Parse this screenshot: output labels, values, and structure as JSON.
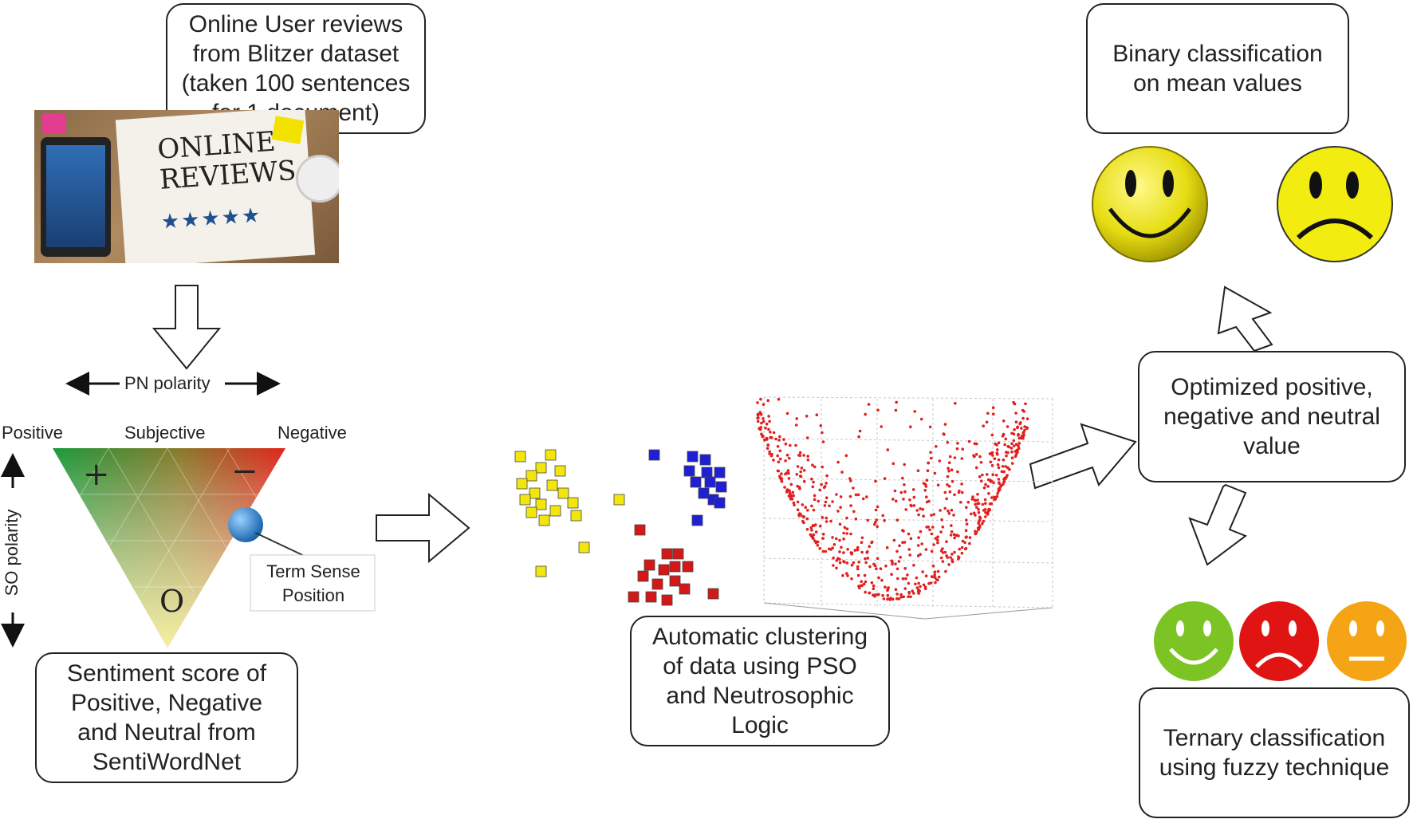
{
  "boxes": {
    "source": [
      "Online User reviews",
      "from Blitzer dataset",
      "(taken 100 sentences",
      "for 1 document)"
    ],
    "sentiment": [
      "Sentiment score of",
      "Positive, Negative",
      "and Neutral from",
      "SentiWordNet"
    ],
    "clustering": [
      "Automatic clustering",
      "of data using PSO",
      "and Neutrosophic",
      "Logic"
    ],
    "optimized": [
      "Optimized positive,",
      "negative and neutral",
      "value"
    ],
    "binary": [
      "Binary classification",
      "on mean values"
    ],
    "ternary": [
      "Ternary classification",
      "using fuzzy technique"
    ]
  },
  "photo": {
    "line1": "ONLINE",
    "line2": "REVIEWS"
  },
  "triangle": {
    "pn_axis": "PN polarity",
    "so_axis": "SO polarity",
    "positive": "Positive",
    "subjective": "Subjective",
    "negative": "Negative",
    "plus": "+",
    "minus": "−",
    "zero": "O",
    "term_sense": [
      "Term Sense",
      "Position"
    ]
  },
  "colors": {
    "yellow_cluster": "#f2e60c",
    "blue_cluster": "#1f1fd6",
    "red_cluster": "#d41818",
    "scatter": "#e02020",
    "smiley_yellow": "#e8e01a",
    "face_green": "#7cc424",
    "face_red": "#e11414",
    "face_orange": "#f5a416"
  },
  "icons": [
    "down-arrow-icon",
    "right-arrow-icon",
    "up-arrow-icon",
    "smiley-icon",
    "sad-face-icon",
    "neutral-face-icon"
  ]
}
